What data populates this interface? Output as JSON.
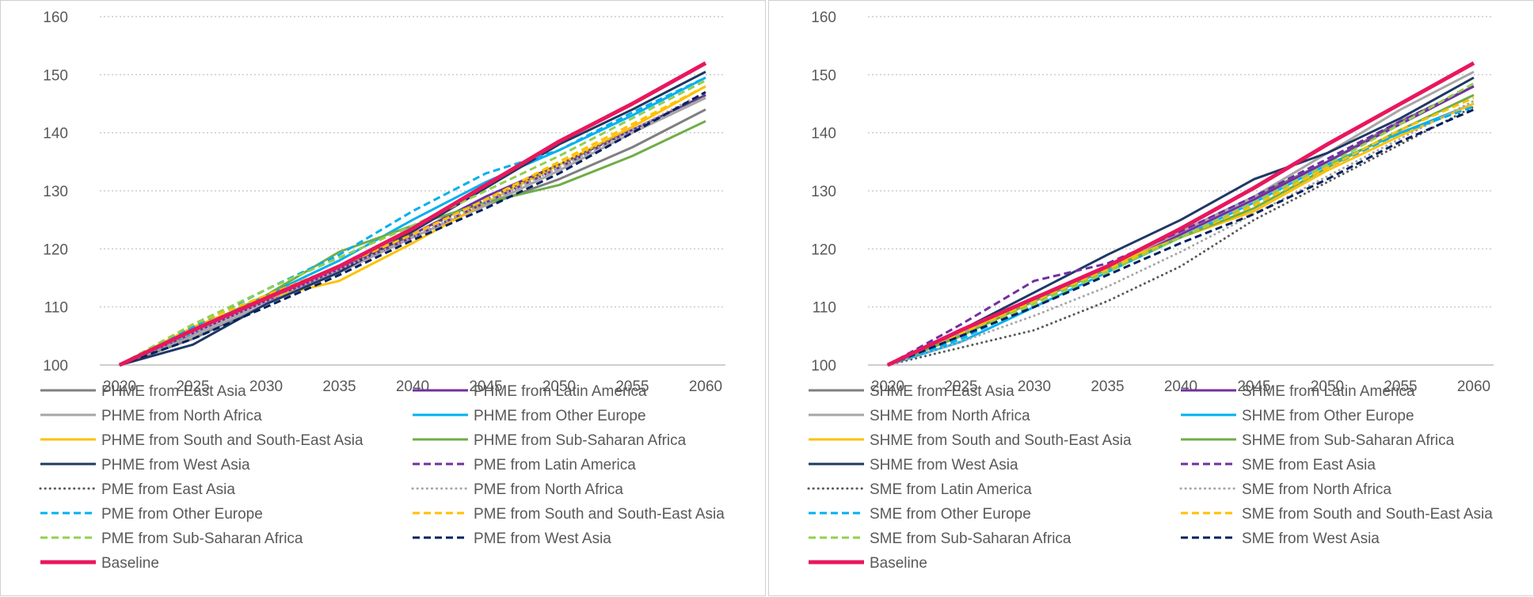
{
  "chart_data": [
    {
      "type": "line",
      "title": "",
      "xlabel": "",
      "ylabel": "",
      "x": [
        2020,
        2025,
        2030,
        2035,
        2040,
        2045,
        2050,
        2055,
        2060
      ],
      "ylim": [
        100,
        160
      ],
      "yticks": [
        100,
        110,
        120,
        130,
        140,
        150,
        160
      ],
      "grid": true,
      "legend_position": "bottom",
      "series": [
        {
          "name": "PHME from East Asia",
          "color": "#7f7f7f",
          "dash": "solid",
          "width": 3,
          "values": [
            100,
            104.5,
            110.5,
            116,
            122,
            127.5,
            132,
            137.5,
            144
          ]
        },
        {
          "name": "PHME from Latin America",
          "color": "#7030a0",
          "dash": "solid",
          "width": 3,
          "values": [
            100,
            105.5,
            111,
            116.5,
            122.5,
            129,
            134.5,
            140.5,
            146.5
          ]
        },
        {
          "name": "PHME from North Africa",
          "color": "#a6a6a6",
          "dash": "solid",
          "width": 3,
          "values": [
            100,
            105,
            110.5,
            116,
            122,
            127.5,
            133.5,
            140,
            146
          ]
        },
        {
          "name": "PHME from Other Europe",
          "color": "#00b0f0",
          "dash": "solid",
          "width": 3,
          "values": [
            100,
            105.5,
            112,
            118,
            125,
            131.5,
            137,
            143,
            149.5
          ]
        },
        {
          "name": "PHME from South and South-East Asia",
          "color": "#ffc000",
          "dash": "solid",
          "width": 3,
          "values": [
            100,
            106.5,
            111.5,
            114.5,
            121,
            128,
            134.5,
            141,
            148
          ]
        },
        {
          "name": "PHME from Sub-Saharan Africa",
          "color": "#70ad47",
          "dash": "solid",
          "width": 3,
          "values": [
            100,
            106,
            112,
            119.5,
            124,
            128,
            131,
            136,
            142
          ]
        },
        {
          "name": "PHME from West Asia",
          "color": "#1f3864",
          "dash": "solid",
          "width": 3,
          "values": [
            100,
            103.5,
            110.5,
            116,
            123,
            130.5,
            138,
            144,
            150.5
          ]
        },
        {
          "name": "PME from Latin America",
          "color": "#7030a0",
          "dash": "dashed",
          "width": 3,
          "values": [
            100,
            105.5,
            111.5,
            116.5,
            122,
            128,
            134,
            140.5,
            146.5
          ]
        },
        {
          "name": "PME from East Asia",
          "color": "#595959",
          "dash": "dotted",
          "width": 3,
          "values": [
            100,
            105.5,
            111,
            117,
            122.5,
            128.5,
            134.5,
            140.5,
            146.5
          ]
        },
        {
          "name": "PME from North Africa",
          "color": "#a6a6a6",
          "dash": "dotted",
          "width": 3,
          "values": [
            100,
            105.5,
            111,
            116.5,
            122,
            128,
            134,
            140.5,
            147
          ]
        },
        {
          "name": "PME from Other Europe",
          "color": "#00b0f0",
          "dash": "dashed",
          "width": 3,
          "values": [
            100,
            106.5,
            113,
            119,
            126.5,
            133,
            137,
            143.5,
            149.5
          ]
        },
        {
          "name": "PME from South and South-East Asia",
          "color": "#ffc000",
          "dash": "dashed",
          "width": 3,
          "values": [
            100,
            107,
            112,
            117,
            122.5,
            128.5,
            135,
            141.5,
            148
          ]
        },
        {
          "name": "PME from Sub-Saharan Africa",
          "color": "#92d050",
          "dash": "dashed",
          "width": 3,
          "values": [
            100,
            107,
            113,
            118.5,
            124,
            130,
            136,
            142.5,
            149
          ]
        },
        {
          "name": "PME from West Asia",
          "color": "#002060",
          "dash": "dashed",
          "width": 3,
          "values": [
            100,
            104.5,
            110,
            115.5,
            121.5,
            127,
            133,
            140,
            147
          ]
        },
        {
          "name": "Baseline",
          "color": "#e8175d",
          "dash": "solid",
          "width": 5,
          "values": [
            100,
            106,
            111.5,
            117,
            123.5,
            131,
            138.5,
            145,
            152
          ]
        }
      ]
    },
    {
      "type": "line",
      "title": "",
      "xlabel": "",
      "ylabel": "",
      "x": [
        2020,
        2025,
        2030,
        2035,
        2040,
        2045,
        2050,
        2055,
        2060
      ],
      "ylim": [
        100,
        160
      ],
      "yticks": [
        100,
        110,
        120,
        130,
        140,
        150,
        160
      ],
      "grid": true,
      "legend_position": "bottom",
      "series": [
        {
          "name": "SHME from East Asia",
          "color": "#7f7f7f",
          "dash": "solid",
          "width": 3,
          "values": [
            100,
            105.5,
            111,
            117,
            123,
            129,
            135,
            142,
            148
          ]
        },
        {
          "name": "SHME from Latin America",
          "color": "#7030a0",
          "dash": "solid",
          "width": 3,
          "values": [
            100,
            105.5,
            111,
            116.5,
            122.5,
            128.5,
            135,
            141.5,
            148
          ]
        },
        {
          "name": "SHME from North Africa",
          "color": "#a6a6a6",
          "dash": "solid",
          "width": 3,
          "values": [
            100,
            105.5,
            111,
            117,
            123,
            129,
            136.5,
            144,
            150.5
          ]
        },
        {
          "name": "SHME from Other Europe",
          "color": "#00b0f0",
          "dash": "solid",
          "width": 3,
          "values": [
            100,
            104,
            110,
            116,
            122,
            128,
            134.5,
            140,
            145
          ]
        },
        {
          "name": "SHME from South and South-East Asia",
          "color": "#ffc000",
          "dash": "solid",
          "width": 3,
          "values": [
            100,
            105,
            111.5,
            117,
            122,
            126.5,
            133.5,
            139.5,
            145
          ]
        },
        {
          "name": "SHME from Sub-Saharan Africa",
          "color": "#70ad47",
          "dash": "solid",
          "width": 3,
          "values": [
            100,
            105,
            111,
            116.5,
            122,
            127,
            134,
            140.5,
            146.5
          ]
        },
        {
          "name": "SHME from West Asia",
          "color": "#1f3864",
          "dash": "solid",
          "width": 3,
          "values": [
            100,
            106,
            112.5,
            119,
            125,
            132,
            136.5,
            142.5,
            149.5
          ]
        },
        {
          "name": "SME from East Asia",
          "color": "#7030a0",
          "dash": "dashed",
          "width": 3,
          "values": [
            100,
            107,
            114.5,
            117.5,
            123,
            129,
            135.5,
            142,
            148
          ]
        },
        {
          "name": "SME from Latin America",
          "color": "#595959",
          "dash": "dotted",
          "width": 3,
          "values": [
            100,
            103,
            106,
            111,
            117,
            125,
            131.5,
            138,
            144.5
          ]
        },
        {
          "name": "SME from North Africa",
          "color": "#a6a6a6",
          "dash": "dotted",
          "width": 3,
          "values": [
            100,
            104,
            108.5,
            113.5,
            119.5,
            126,
            132.5,
            139,
            145.5
          ]
        },
        {
          "name": "SME from Other Europe",
          "color": "#00b0f0",
          "dash": "dashed",
          "width": 3,
          "values": [
            100,
            104.5,
            110.5,
            116.5,
            122,
            127.5,
            134,
            140,
            144.5
          ]
        },
        {
          "name": "SME from South and South-East Asia",
          "color": "#ffc000",
          "dash": "dashed",
          "width": 3,
          "values": [
            100,
            105.5,
            111,
            116.5,
            122,
            127.5,
            134,
            140.5,
            146
          ]
        },
        {
          "name": "SME from Sub-Saharan Africa",
          "color": "#92d050",
          "dash": "dashed",
          "width": 3,
          "values": [
            100,
            105,
            110.5,
            116,
            122,
            128,
            134.5,
            141.5,
            148.5
          ]
        },
        {
          "name": "SME from West Asia",
          "color": "#002060",
          "dash": "dashed",
          "width": 3,
          "values": [
            100,
            105,
            110,
            115.5,
            121,
            126,
            132,
            138.5,
            144
          ]
        },
        {
          "name": "Baseline",
          "color": "#e8175d",
          "dash": "solid",
          "width": 5,
          "values": [
            100,
            106,
            111.5,
            117,
            123.5,
            130.5,
            138,
            145,
            152
          ]
        }
      ]
    }
  ]
}
